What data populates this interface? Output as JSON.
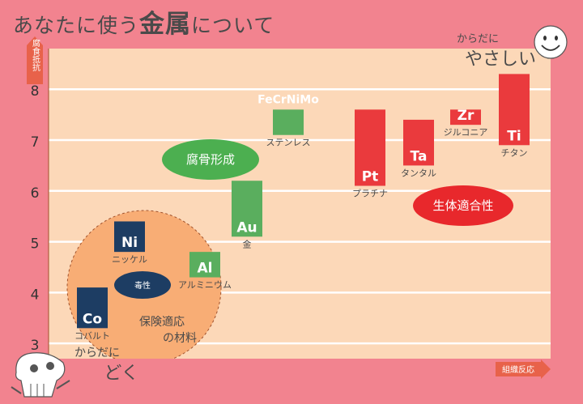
{
  "title": {
    "prefix": "あなたに使う",
    "emphasis": "金属",
    "suffix": "について"
  },
  "axis": {
    "y_label": "腐食抵抗",
    "x_label": "組織反応"
  },
  "corner_labels": {
    "top_right_small": "からだに",
    "top_right_big": "やさしい",
    "bottom_left_small": "からだに",
    "bottom_left_big": "どく"
  },
  "region_labels": {
    "bone_formation": "腐骨形成",
    "biocompatibility": "生体適合性",
    "toxicity": "毒性",
    "insurance_line1": "保険適応",
    "insurance_line2": "の材料"
  },
  "colors": {
    "background": "#f2838f",
    "plot_bg": "#fcd8b8",
    "gridline": "#ffffff",
    "toxic_circle": "#f8ad75",
    "toxic_metal": "#1d3d63",
    "intermediate_metal": "#5aae5e",
    "biocompatible_metal": "#ea3a3d",
    "bone_ellipse": "#4caf50",
    "biocompat_ellipse": "#e8282c"
  },
  "chart_data": {
    "type": "range-bar",
    "xlabel": "組織反応",
    "ylabel": "腐食抵抗",
    "ylim": [
      2.7,
      8.8
    ],
    "yticks": [
      3,
      4,
      5,
      6,
      7,
      8
    ],
    "grid": true,
    "metals": [
      {
        "symbol": "Co",
        "name": "コバルト",
        "group": "toxic",
        "low": 3.3,
        "high": 4.1
      },
      {
        "symbol": "Ni",
        "name": "ニッケル",
        "group": "toxic",
        "low": 4.8,
        "high": 5.4
      },
      {
        "symbol": "Al",
        "name": "アルミニウム",
        "group": "intermediate",
        "low": 4.3,
        "high": 4.8
      },
      {
        "symbol": "Au",
        "name": "金",
        "group": "intermediate",
        "low": 5.1,
        "high": 6.2
      },
      {
        "symbol": "FeCrNiMo",
        "name": "ステンレス",
        "group": "intermediate",
        "low": 7.1,
        "high": 7.6
      },
      {
        "symbol": "Pt",
        "name": "プラチナ",
        "group": "biocompatible",
        "low": 6.1,
        "high": 7.6
      },
      {
        "symbol": "Ta",
        "name": "タンタル",
        "group": "biocompatible",
        "low": 6.5,
        "high": 7.4
      },
      {
        "symbol": "Zr",
        "name": "ジルコニア",
        "group": "biocompatible",
        "low": 7.3,
        "high": 7.6
      },
      {
        "symbol": "Ti",
        "name": "チタン",
        "group": "biocompatible",
        "low": 6.9,
        "high": 8.3
      }
    ]
  }
}
